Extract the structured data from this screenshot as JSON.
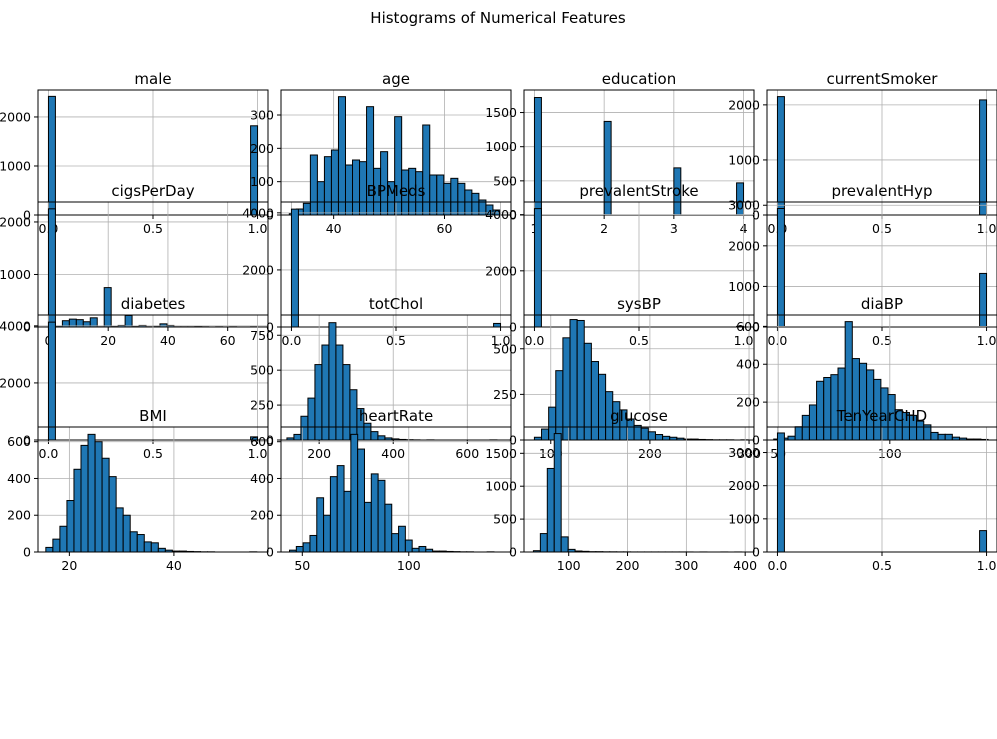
{
  "figure": {
    "title": "Histograms of Numerical Features"
  },
  "colors": {
    "bar_fill": "#1f77b4",
    "bar_edge": "#000000",
    "grid": "#b0b0b0"
  },
  "chart_data": [
    {
      "type": "bar",
      "title": "male",
      "grid": true,
      "xlim": [
        -0.05,
        1.05
      ],
      "ylim": [
        0,
        2550
      ],
      "xticks": [
        0,
        0.5,
        1
      ],
      "xtick_labels": [
        "0.0",
        "0.5",
        "1.0"
      ],
      "yticks": [
        0,
        1000,
        2000
      ],
      "ytick_labels": [
        "0",
        "1000",
        "2000"
      ],
      "bins": [
        {
          "x0": 0,
          "x1": 0.0333,
          "v": 2420
        },
        {
          "x0": 0.9667,
          "x1": 1,
          "v": 1820
        }
      ]
    },
    {
      "type": "bar",
      "title": "age",
      "grid": true,
      "xlim": [
        30.5,
        72
      ],
      "ylim": [
        0,
        375
      ],
      "xticks": [
        40,
        60
      ],
      "xtick_labels": [
        "40",
        "60"
      ],
      "yticks": [
        0,
        100,
        200,
        300
      ],
      "ytick_labels": [
        "0",
        "100",
        "200",
        "300"
      ],
      "bin_start": 32,
      "bin_width": 1.267,
      "values": [
        5,
        18,
        35,
        180,
        100,
        175,
        195,
        355,
        150,
        165,
        160,
        325,
        140,
        190,
        100,
        295,
        135,
        140,
        130,
        270,
        120,
        120,
        95,
        110,
        95,
        75,
        65,
        45,
        30,
        15
      ]
    },
    {
      "type": "bar",
      "title": "education",
      "grid": true,
      "xlim": [
        0.85,
        4.15
      ],
      "ylim": [
        0,
        1830
      ],
      "xticks": [
        1,
        2,
        3,
        4
      ],
      "xtick_labels": [
        "1",
        "2",
        "3",
        "4"
      ],
      "yticks": [
        0,
        500,
        1000,
        1500
      ],
      "ytick_labels": [
        "0",
        "500",
        "1000",
        "1500"
      ],
      "bins": [
        {
          "x0": 1,
          "x1": 1.1,
          "v": 1720
        },
        {
          "x0": 2,
          "x1": 2.1,
          "v": 1370
        },
        {
          "x0": 3,
          "x1": 3.1,
          "v": 690
        },
        {
          "x0": 3.9,
          "x1": 4,
          "v": 470
        }
      ]
    },
    {
      "type": "bar",
      "title": "currentSmoker",
      "grid": true,
      "xlim": [
        -0.05,
        1.05
      ],
      "ylim": [
        0,
        2270
      ],
      "xticks": [
        0,
        0.5,
        1
      ],
      "xtick_labels": [
        "0.0",
        "0.5",
        "1.0"
      ],
      "yticks": [
        0,
        1000,
        2000
      ],
      "ytick_labels": [
        "0",
        "1000",
        "2000"
      ],
      "bins": [
        {
          "x0": 0,
          "x1": 0.0333,
          "v": 2150
        },
        {
          "x0": 0.9667,
          "x1": 1,
          "v": 2090
        }
      ]
    },
    {
      "type": "bar",
      "title": "cigsPerDay",
      "grid": true,
      "xlim": [
        -3.5,
        73.5
      ],
      "ylim": [
        0,
        2380
      ],
      "xticks": [
        0,
        20,
        40,
        60
      ],
      "xtick_labels": [
        "0",
        "20",
        "40",
        "60"
      ],
      "yticks": [
        0,
        1000,
        2000
      ],
      "ytick_labels": [
        "0",
        "1000",
        "2000"
      ],
      "bin_start": 0,
      "bin_width": 2.333,
      "values": [
        2250,
        20,
        120,
        150,
        140,
        100,
        175,
        5,
        750,
        10,
        30,
        220,
        10,
        30,
        5,
        20,
        60,
        30,
        5,
        5,
        5,
        10,
        5,
        0,
        5,
        0,
        5,
        0,
        0,
        5
      ]
    },
    {
      "type": "bar",
      "title": "BPMeds",
      "grid": true,
      "xlim": [
        -0.05,
        1.05
      ],
      "ylim": [
        0,
        4380
      ],
      "xticks": [
        0,
        0.5,
        1
      ],
      "xtick_labels": [
        "0.0",
        "0.5",
        "1.0"
      ],
      "yticks": [
        0,
        2000,
        4000
      ],
      "ytick_labels": [
        "0",
        "2000",
        "4000"
      ],
      "bins": [
        {
          "x0": 0,
          "x1": 0.0333,
          "v": 4130
        },
        {
          "x0": 0.9667,
          "x1": 1,
          "v": 125
        }
      ]
    },
    {
      "type": "bar",
      "title": "prevalentStroke",
      "grid": true,
      "xlim": [
        -0.05,
        1.05
      ],
      "ylim": [
        0,
        4450
      ],
      "xticks": [
        0,
        0.5,
        1
      ],
      "xtick_labels": [
        "0.0",
        "0.5",
        "1.0"
      ],
      "yticks": [
        0,
        2000,
        4000
      ],
      "ytick_labels": [
        "0",
        "2000",
        "4000"
      ],
      "bins": [
        {
          "x0": 0,
          "x1": 0.0333,
          "v": 4215
        },
        {
          "x0": 0.9667,
          "x1": 1,
          "v": 25
        }
      ]
    },
    {
      "type": "bar",
      "title": "prevalentHyp",
      "grid": true,
      "xlim": [
        -0.05,
        1.05
      ],
      "ylim": [
        0,
        3080
      ],
      "xticks": [
        0,
        0.5,
        1
      ],
      "xtick_labels": [
        "0.0",
        "0.5",
        "1.0"
      ],
      "yticks": [
        0,
        1000,
        2000,
        3000
      ],
      "ytick_labels": [
        "0",
        "1000",
        "2000",
        "3000"
      ],
      "bins": [
        {
          "x0": 0,
          "x1": 0.0333,
          "v": 2920
        },
        {
          "x0": 0.9667,
          "x1": 1,
          "v": 1320
        }
      ]
    },
    {
      "type": "bar",
      "title": "diabetes",
      "grid": true,
      "xlim": [
        -0.05,
        1.05
      ],
      "ylim": [
        0,
        4380
      ],
      "xticks": [
        0,
        0.5,
        1
      ],
      "xtick_labels": [
        "0.0",
        "0.5",
        "1.0"
      ],
      "yticks": [
        0,
        2000,
        4000
      ],
      "ytick_labels": [
        "0",
        "2000",
        "4000"
      ],
      "bins": [
        {
          "x0": 0,
          "x1": 0.0333,
          "v": 4130
        },
        {
          "x0": 0.9667,
          "x1": 1,
          "v": 110
        }
      ]
    },
    {
      "type": "bar",
      "title": "totChol",
      "grid": true,
      "xlim": [
        97,
        718
      ],
      "ylim": [
        0,
        895
      ],
      "xticks": [
        200,
        400,
        600
      ],
      "xtick_labels": [
        "200",
        "400",
        "600"
      ],
      "yticks": [
        0,
        250,
        500,
        750
      ],
      "ytick_labels": [
        "0",
        "250",
        "500",
        "750"
      ],
      "bin_start": 113,
      "bin_width": 18.9,
      "values": [
        15,
        40,
        170,
        300,
        540,
        680,
        840,
        680,
        540,
        360,
        225,
        120,
        60,
        30,
        15,
        8,
        4,
        2,
        1,
        0,
        1,
        0,
        0,
        0,
        0,
        0,
        0,
        0,
        0,
        1
      ]
    },
    {
      "type": "bar",
      "title": "sysBP",
      "grid": true,
      "xlim": [
        73,
        305
      ],
      "ylim": [
        0,
        685
      ],
      "xticks": [
        100,
        200,
        300
      ],
      "xtick_labels": [
        "100",
        "200",
        "300"
      ],
      "bin_start": 83.5,
      "bin_width": 7.183,
      "values": [
        15,
        60,
        180,
        380,
        560,
        660,
        655,
        530,
        430,
        360,
        265,
        210,
        165,
        115,
        80,
        65,
        45,
        30,
        20,
        15,
        10,
        5,
        5,
        3,
        2,
        1,
        1,
        1,
        0,
        1
      ]
    },
    {
      "type": "bar",
      "title": "diaBP",
      "grid": true,
      "xlim": [
        45,
        148
      ],
      "ylim": [
        0,
        660
      ],
      "xticks": [
        50,
        100
      ],
      "xtick_labels": [
        "50",
        "100"
      ],
      "yticks": [
        0,
        200,
        400,
        600
      ],
      "ytick_labels": [
        "0",
        "200",
        "400",
        "600"
      ],
      "bin_start": 48,
      "bin_width": 3.2,
      "values": [
        5,
        10,
        20,
        70,
        130,
        185,
        310,
        330,
        345,
        380,
        625,
        430,
        405,
        370,
        320,
        275,
        240,
        160,
        145,
        130,
        100,
        80,
        40,
        30,
        30,
        15,
        10,
        5,
        5,
        3
      ]
    },
    {
      "type": "bar",
      "title": "BMI",
      "grid": true,
      "xlim": [
        14,
        58
      ],
      "ylim": [
        0,
        680
      ],
      "xticks": [
        20,
        40
      ],
      "xtick_labels": [
        "20",
        "40"
      ],
      "yticks": [
        0,
        200,
        400,
        600
      ],
      "ytick_labels": [
        "0",
        "200",
        "400",
        "600"
      ],
      "bin_start": 15.5,
      "bin_width": 1.345,
      "values": [
        25,
        70,
        140,
        280,
        450,
        580,
        640,
        600,
        510,
        410,
        240,
        200,
        110,
        95,
        55,
        50,
        20,
        10,
        5,
        5,
        3,
        2,
        1,
        1,
        0,
        0,
        0,
        0,
        0,
        1
      ]
    },
    {
      "type": "bar",
      "title": "heartRate",
      "grid": true,
      "xlim": [
        40,
        148
      ],
      "ylim": [
        0,
        680
      ],
      "xticks": [
        50,
        100
      ],
      "xtick_labels": [
        "50",
        "100"
      ],
      "yticks": [
        0,
        200,
        400,
        600
      ],
      "ytick_labels": [
        "0",
        "200",
        "400",
        "600"
      ],
      "bin_start": 44,
      "bin_width": 3.2,
      "values": [
        10,
        30,
        50,
        90,
        295,
        200,
        410,
        470,
        330,
        640,
        560,
        270,
        425,
        390,
        260,
        100,
        140,
        65,
        20,
        30,
        15,
        5,
        5,
        3,
        2,
        1,
        1,
        0,
        0,
        1
      ]
    },
    {
      "type": "bar",
      "title": "glucose",
      "grid": true,
      "xlim": [
        24,
        415
      ],
      "ylim": [
        0,
        1900
      ],
      "xticks": [
        100,
        200,
        300,
        400
      ],
      "xtick_labels": [
        "100",
        "200",
        "300",
        "400"
      ],
      "yticks": [
        0,
        500,
        1000,
        1500
      ],
      "ytick_labels": [
        "0",
        "500",
        "1000",
        "1500"
      ],
      "bin_start": 40,
      "bin_width": 11.8,
      "values": [
        20,
        280,
        1270,
        1800,
        230,
        40,
        15,
        10,
        5,
        5,
        3,
        3,
        2,
        2,
        1,
        1,
        1,
        1,
        1,
        1,
        1,
        1,
        1,
        0,
        1,
        0,
        0,
        1,
        0,
        1
      ]
    },
    {
      "type": "bar",
      "title": "TenYearCHD",
      "grid": true,
      "xlim": [
        -0.05,
        1.05
      ],
      "ylim": [
        0,
        3770
      ],
      "xticks": [
        0,
        0.5,
        1
      ],
      "xtick_labels": [
        "0.0",
        "0.5",
        "1.0"
      ],
      "yticks": [
        0,
        1000,
        2000,
        3000
      ],
      "ytick_labels": [
        "0",
        "1000",
        "2000",
        "3000"
      ],
      "bins": [
        {
          "x0": 0,
          "x1": 0.0333,
          "v": 3590
        },
        {
          "x0": 0.9667,
          "x1": 1,
          "v": 645
        }
      ]
    }
  ]
}
